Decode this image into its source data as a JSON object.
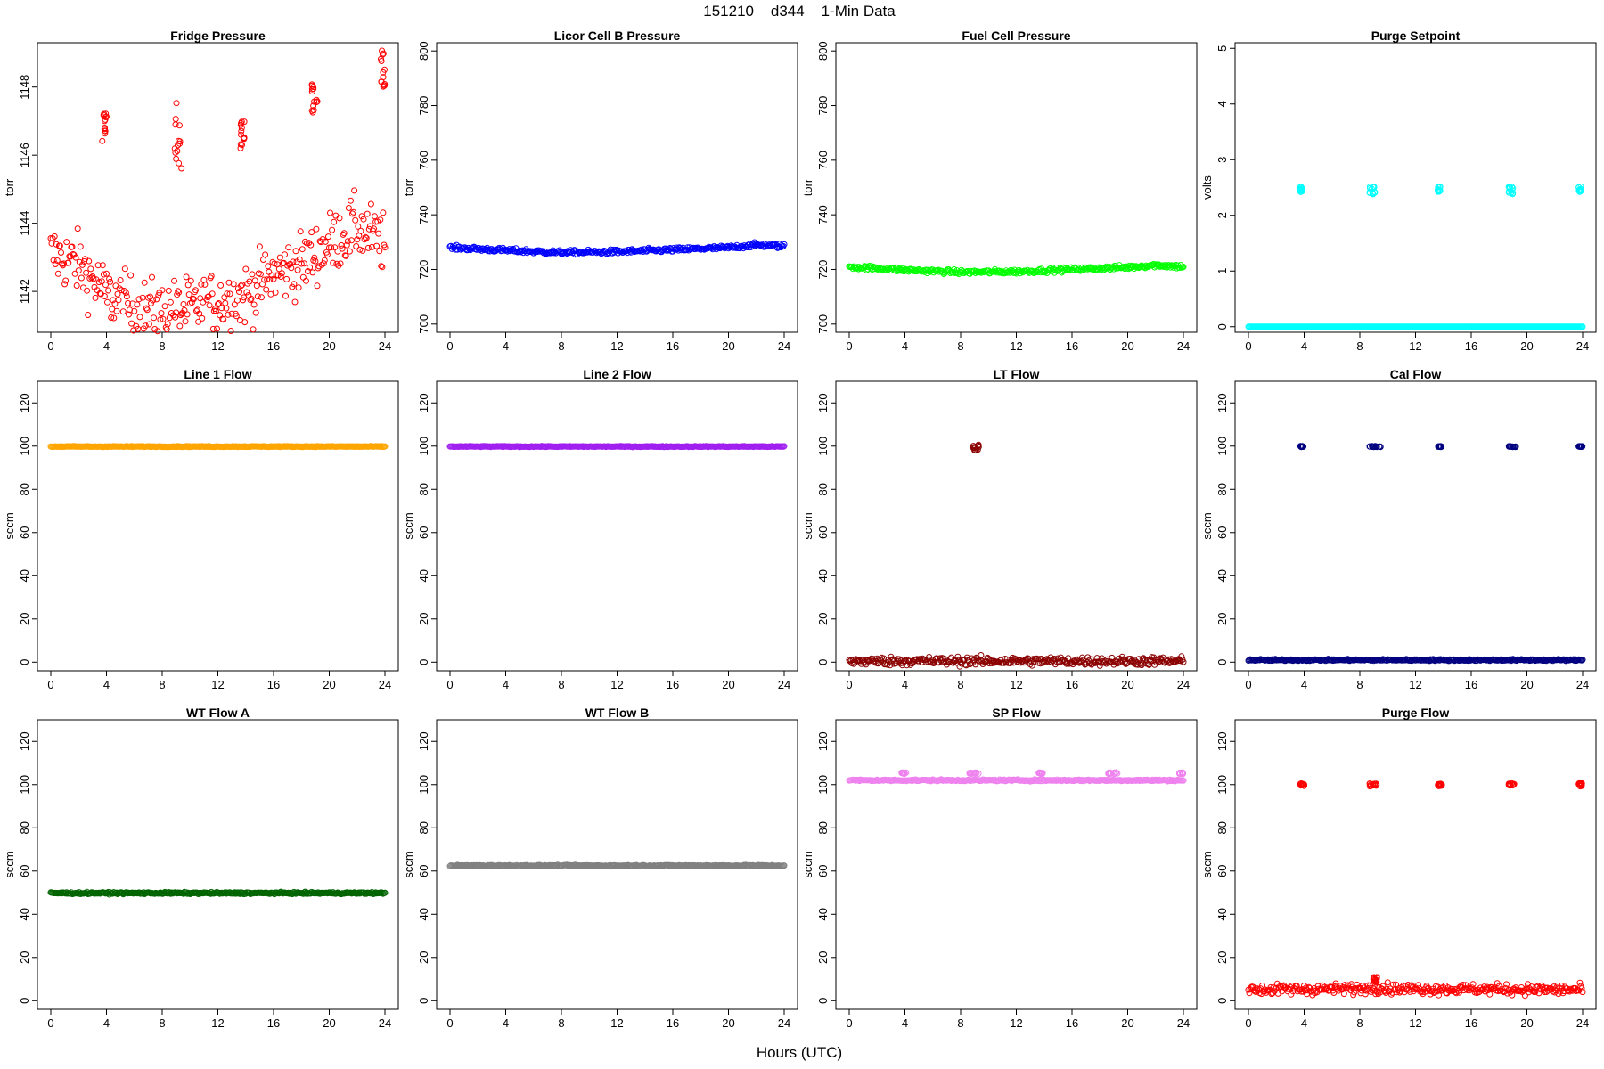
{
  "figure": {
    "title": "151210    d344    1-Min Data",
    "xlabel": "Hours (UTC)"
  },
  "chart_data": [
    {
      "type": "scatter",
      "title": "Fridge Pressure",
      "ylabel": "torr",
      "xlim": [
        0,
        24
      ],
      "ylim": [
        1140.8,
        1149.3
      ],
      "xticks": [
        0,
        4,
        8,
        12,
        16,
        20,
        24
      ],
      "yticks": [
        1142,
        1144,
        1146,
        1148
      ],
      "color": "#ff0000",
      "marker": "open-circle",
      "series": [
        {
          "baseline": [
            [
              0,
              1143.1
            ],
            [
              2,
              1142.8
            ],
            [
              4,
              1141.9
            ],
            [
              6,
              1141.5
            ],
            [
              8,
              1141.4
            ],
            [
              10,
              1141.5
            ],
            [
              12,
              1141.7
            ],
            [
              14,
              1141.9
            ],
            [
              16,
              1142.5
            ],
            [
              18,
              1142.8
            ],
            [
              20,
              1143.4
            ],
            [
              22,
              1143.9
            ],
            [
              24,
              1143.4
            ]
          ],
          "noise": 0.45,
          "excursions": [
            {
              "x": [
                3.7,
                4.0
              ],
              "y": [
                1146.4,
                1147.3
              ]
            },
            {
              "x": [
                8.8,
                9.4
              ],
              "y": [
                1145.6,
                1147.7
              ]
            },
            {
              "x": [
                13.6,
                13.9
              ],
              "y": [
                1146.2,
                1147.1
              ]
            },
            {
              "x": [
                18.7,
                19.2
              ],
              "y": [
                1147.2,
                1148.2
              ]
            },
            {
              "x": [
                23.7,
                24.0
              ],
              "y": [
                1148.0,
                1149.1
              ]
            }
          ]
        }
      ]
    },
    {
      "type": "scatter",
      "title": "Licor Cell B Pressure",
      "ylabel": "torr",
      "xlim": [
        0,
        24
      ],
      "ylim": [
        697,
        803
      ],
      "xticks": [
        0,
        4,
        8,
        12,
        16,
        20,
        24
      ],
      "yticks": [
        700,
        720,
        740,
        760,
        780,
        800
      ],
      "color": "#0000ff",
      "marker": "open-circle",
      "series": [
        {
          "baseline": [
            [
              0,
              728
            ],
            [
              4,
              727
            ],
            [
              8,
              726.2
            ],
            [
              12,
              726.5
            ],
            [
              16,
              727.2
            ],
            [
              20,
              728
            ],
            [
              22,
              729
            ],
            [
              24,
              728.5
            ]
          ],
          "noise": 0.4,
          "excursions": []
        }
      ]
    },
    {
      "type": "scatter",
      "title": "Fuel Cell Pressure",
      "ylabel": "torr",
      "xlim": [
        0,
        24
      ],
      "ylim": [
        697,
        803
      ],
      "xticks": [
        0,
        4,
        8,
        12,
        16,
        20,
        24
      ],
      "yticks": [
        700,
        720,
        740,
        760,
        780,
        800
      ],
      "color": "#00ff00",
      "marker": "open-circle",
      "series": [
        {
          "baseline": [
            [
              0,
              721
            ],
            [
              4,
              719.8
            ],
            [
              8,
              719
            ],
            [
              12,
              719.2
            ],
            [
              16,
              720
            ],
            [
              20,
              720.8
            ],
            [
              22,
              721.6
            ],
            [
              24,
              721
            ]
          ],
          "noise": 0.4,
          "excursions": []
        }
      ]
    },
    {
      "type": "scatter",
      "title": "Purge Setpoint",
      "ylabel": "volts",
      "xlim": [
        0,
        24
      ],
      "ylim": [
        -0.1,
        5.1
      ],
      "xticks": [
        0,
        4,
        8,
        12,
        16,
        20,
        24
      ],
      "yticks": [
        0,
        1,
        2,
        3,
        4,
        5
      ],
      "color": "#00ffff",
      "marker": "open-circle",
      "series": [
        {
          "baseline": [
            [
              0,
              0
            ],
            [
              24,
              0
            ]
          ],
          "noise": 0.0,
          "excursions": [
            {
              "x": [
                3.7,
                3.9
              ],
              "y": [
                2.42,
                2.52
              ]
            },
            {
              "x": [
                8.7,
                9.1
              ],
              "y": [
                2.38,
                2.52
              ]
            },
            {
              "x": [
                13.6,
                13.8
              ],
              "y": [
                2.42,
                2.52
              ]
            },
            {
              "x": [
                18.7,
                19.0
              ],
              "y": [
                2.38,
                2.52
              ]
            },
            {
              "x": [
                23.7,
                23.9
              ],
              "y": [
                2.42,
                2.52
              ]
            }
          ]
        }
      ]
    },
    {
      "type": "scatter",
      "title": "Line 1 Flow",
      "ylabel": "sccm",
      "xlim": [
        0,
        24
      ],
      "ylim": [
        -4,
        130
      ],
      "xticks": [
        0,
        4,
        8,
        12,
        16,
        20,
        24
      ],
      "yticks": [
        0,
        20,
        40,
        60,
        80,
        100,
        120
      ],
      "color": "#ffa500",
      "marker": "open-circle",
      "series": [
        {
          "baseline": [
            [
              0,
              99.8
            ],
            [
              24,
              99.8
            ]
          ],
          "noise": 0.1,
          "excursions": []
        }
      ]
    },
    {
      "type": "scatter",
      "title": "Line 2 Flow",
      "ylabel": "sccm",
      "xlim": [
        0,
        24
      ],
      "ylim": [
        -4,
        130
      ],
      "xticks": [
        0,
        4,
        8,
        12,
        16,
        20,
        24
      ],
      "yticks": [
        0,
        20,
        40,
        60,
        80,
        100,
        120
      ],
      "color": "#a020f0",
      "marker": "open-circle",
      "series": [
        {
          "baseline": [
            [
              0,
              99.8
            ],
            [
              24,
              99.8
            ]
          ],
          "noise": 0.1,
          "excursions": []
        }
      ]
    },
    {
      "type": "scatter",
      "title": "LT Flow",
      "ylabel": "sccm",
      "xlim": [
        0,
        24
      ],
      "ylim": [
        -4,
        130
      ],
      "xticks": [
        0,
        4,
        8,
        12,
        16,
        20,
        24
      ],
      "yticks": [
        0,
        20,
        40,
        60,
        80,
        100,
        120
      ],
      "color": "#8b0000",
      "marker": "open-circle",
      "series": [
        {
          "baseline": [
            [
              0,
              0.5
            ],
            [
              24,
              0.5
            ]
          ],
          "noise": 1.0,
          "excursions": [
            {
              "x": [
                8.9,
                9.3
              ],
              "y": [
                98,
                101
              ]
            }
          ]
        }
      ]
    },
    {
      "type": "scatter",
      "title": "Cal Flow",
      "ylabel": "sccm",
      "xlim": [
        0,
        24
      ],
      "ylim": [
        -4,
        130
      ],
      "xticks": [
        0,
        4,
        8,
        12,
        16,
        20,
        24
      ],
      "yticks": [
        0,
        20,
        40,
        60,
        80,
        100,
        120
      ],
      "color": "#000080",
      "marker": "open-circle",
      "series": [
        {
          "baseline": [
            [
              0,
              1
            ],
            [
              24,
              1
            ]
          ],
          "noise": 0.2,
          "excursions": [
            {
              "x": [
                3.7,
                4.0
              ],
              "y": [
                99.6,
                100
              ]
            },
            {
              "x": [
                8.7,
                9.5
              ],
              "y": [
                99.6,
                100
              ]
            },
            {
              "x": [
                13.6,
                13.9
              ],
              "y": [
                99.6,
                100
              ]
            },
            {
              "x": [
                18.7,
                19.2
              ],
              "y": [
                99.6,
                100
              ]
            },
            {
              "x": [
                23.7,
                24.0
              ],
              "y": [
                99.6,
                100
              ]
            }
          ]
        }
      ]
    },
    {
      "type": "scatter",
      "title": "WT Flow A",
      "ylabel": "sccm",
      "xlim": [
        0,
        24
      ],
      "ylim": [
        -4,
        130
      ],
      "xticks": [
        0,
        4,
        8,
        12,
        16,
        20,
        24
      ],
      "yticks": [
        0,
        20,
        40,
        60,
        80,
        100,
        120
      ],
      "color": "#006400",
      "marker": "open-circle",
      "series": [
        {
          "baseline": [
            [
              0,
              49.8
            ],
            [
              24,
              49.8
            ]
          ],
          "noise": 0.2,
          "excursions": []
        }
      ]
    },
    {
      "type": "scatter",
      "title": "WT Flow B",
      "ylabel": "sccm",
      "xlim": [
        0,
        24
      ],
      "ylim": [
        -4,
        130
      ],
      "xticks": [
        0,
        4,
        8,
        12,
        16,
        20,
        24
      ],
      "yticks": [
        0,
        20,
        40,
        60,
        80,
        100,
        120
      ],
      "color": "#808080",
      "marker": "open-circle",
      "series": [
        {
          "baseline": [
            [
              0,
              62.5
            ],
            [
              24,
              62.5
            ]
          ],
          "noise": 0.15,
          "excursions": []
        }
      ]
    },
    {
      "type": "scatter",
      "title": "SP Flow",
      "ylabel": "sccm",
      "xlim": [
        0,
        24
      ],
      "ylim": [
        -4,
        130
      ],
      "xticks": [
        0,
        4,
        8,
        12,
        16,
        20,
        24
      ],
      "yticks": [
        0,
        20,
        40,
        60,
        80,
        100,
        120
      ],
      "color": "#ee82ee",
      "marker": "open-circle",
      "series": [
        {
          "baseline": [
            [
              0,
              102
            ],
            [
              24,
              102
            ]
          ],
          "noise": 0.2,
          "excursions": [
            {
              "x": [
                3.7,
                4.1
              ],
              "y": [
                105,
                105.6
              ]
            },
            {
              "x": [
                8.6,
                9.3
              ],
              "y": [
                105,
                105.6
              ]
            },
            {
              "x": [
                13.6,
                13.9
              ],
              "y": [
                105,
                105.6
              ]
            },
            {
              "x": [
                18.6,
                19.3
              ],
              "y": [
                105,
                105.6
              ]
            },
            {
              "x": [
                23.7,
                24.0
              ],
              "y": [
                105,
                105.6
              ]
            }
          ]
        }
      ]
    },
    {
      "type": "scatter",
      "title": "Purge Flow",
      "ylabel": "sccm",
      "xlim": [
        0,
        24
      ],
      "ylim": [
        -4,
        130
      ],
      "xticks": [
        0,
        4,
        8,
        12,
        16,
        20,
        24
      ],
      "yticks": [
        0,
        20,
        40,
        60,
        80,
        100,
        120
      ],
      "color": "#ff0000",
      "marker": "open-circle",
      "series": [
        {
          "baseline": [
            [
              0,
              5
            ],
            [
              8,
              5.5
            ],
            [
              9,
              6
            ],
            [
              10,
              5.5
            ],
            [
              24,
              5
            ]
          ],
          "noise": 1.2,
          "excursions": [
            {
              "x": [
                3.7,
                4.0
              ],
              "y": [
                99.2,
                100.6
              ]
            },
            {
              "x": [
                8.7,
                9.2
              ],
              "y": [
                99.2,
                100.6
              ]
            },
            {
              "x": [
                13.6,
                13.9
              ],
              "y": [
                99.2,
                100.6
              ]
            },
            {
              "x": [
                18.7,
                19.1
              ],
              "y": [
                99.2,
                100.6
              ]
            },
            {
              "x": [
                23.7,
                24.0
              ],
              "y": [
                99.2,
                100.6
              ]
            },
            {
              "x": [
                8.9,
                9.3
              ],
              "y": [
                8,
                11
              ]
            }
          ]
        }
      ]
    }
  ]
}
